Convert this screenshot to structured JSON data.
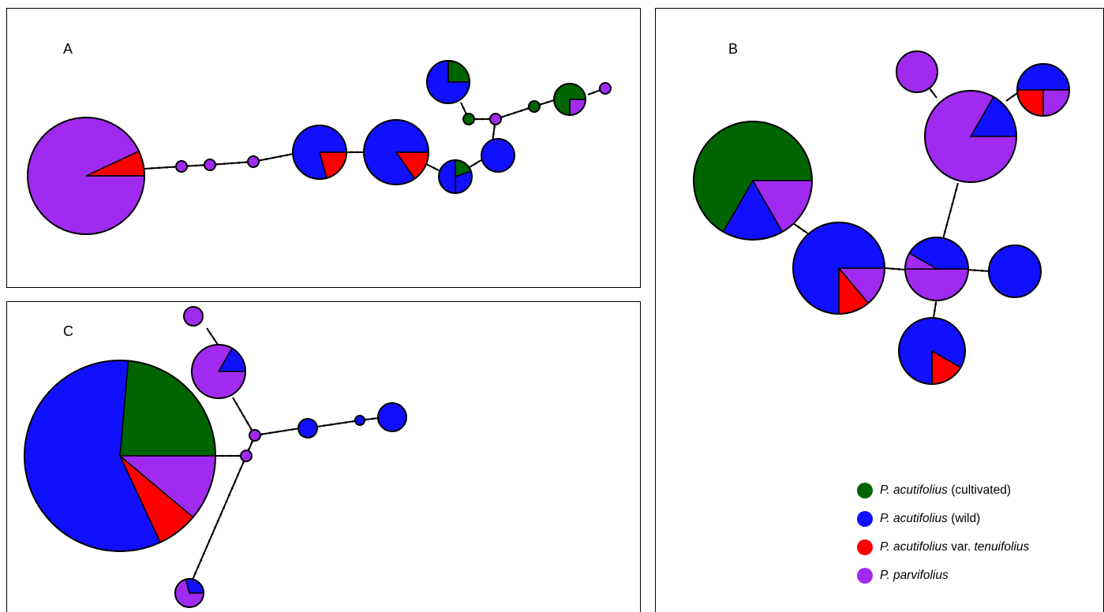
{
  "colors": {
    "cultivated": "#006400",
    "wild": "#1010ff",
    "tenuifolius": "#ff0000",
    "parvifolius": "#a02af0"
  },
  "panels": {
    "a": {
      "label": "A"
    },
    "b": {
      "label": "B"
    },
    "c": {
      "label": "C"
    }
  },
  "legend": [
    {
      "species": "P. acutifolius",
      "qualifier": " (cultivated)",
      "color": "#006400"
    },
    {
      "species": "P. acutifolius",
      "qualifier": " (wild)",
      "color": "#1010ff"
    },
    {
      "species": "P. acutifolius",
      "qualifier": " var. ",
      "qualifier_italic": "tenuifolius",
      "color": "#ff0000"
    },
    {
      "species": "P. parvifolius",
      "qualifier": "",
      "color": "#a02af0"
    }
  ]
}
